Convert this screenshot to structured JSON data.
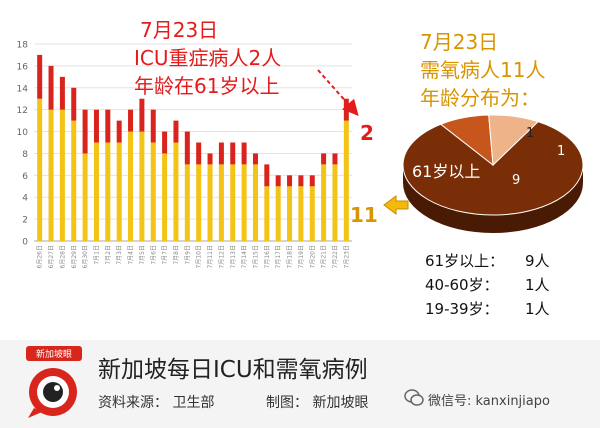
{
  "chart_data": [
    {
      "type": "bar",
      "stacked": true,
      "categories": [
        "6月26日",
        "6月27日",
        "6月28日",
        "6月29日",
        "6月30日",
        "7月1日",
        "7月2日",
        "7月3日",
        "7月4日",
        "7月5日",
        "7月6日",
        "7月7日",
        "7月8日",
        "7月9日",
        "7月10日",
        "7月11日",
        "7月12日",
        "7月13日",
        "7月14日",
        "7月15日",
        "7月16日",
        "7月17日",
        "7月18日",
        "7月19日",
        "7月20日",
        "7月21日",
        "7月22日",
        "7月23日"
      ],
      "series": [
        {
          "values": [
            13,
            12,
            12,
            11,
            8,
            9,
            9,
            9,
            10,
            10,
            9,
            8,
            9,
            7,
            7,
            7,
            7,
            7,
            7,
            7,
            5,
            5,
            5,
            5,
            5,
            7,
            7,
            11
          ],
          "color": "#f3c315"
        },
        {
          "values": [
            4,
            4,
            3,
            3,
            4,
            3,
            3,
            2,
            2,
            3,
            3,
            2,
            2,
            3,
            2,
            1,
            2,
            2,
            2,
            1,
            2,
            1,
            1,
            1,
            1,
            1,
            1,
            2
          ],
          "color": "#d9231d"
        }
      ],
      "ylim": [
        0,
        18
      ],
      "yticks": [
        0,
        2,
        4,
        6,
        8,
        10,
        12,
        14,
        16,
        18
      ],
      "grid": true
    },
    {
      "type": "pie",
      "slices": [
        {
          "label": "61岁以上",
          "value": 9,
          "color": "#7a2e08"
        },
        {
          "label": "40-60岁",
          "value": 1,
          "color": "#c7561c"
        },
        {
          "label": "19-39岁",
          "value": 1,
          "color": "#efb38a"
        }
      ]
    }
  ],
  "annotations": {
    "icu_line1": "7月23日",
    "icu_line2": "ICU重症病人2人",
    "icu_line3": "年龄在61岁以上",
    "icu_count": "2",
    "oxygen_line1": "7月23日",
    "oxygen_line2": "需氧病人11人",
    "oxygen_line3": "年龄分布为：",
    "oxygen_count": "11",
    "pie_label_big": "61岁以上",
    "pie_value_big": "9",
    "pie_value_a": "1",
    "pie_value_b": "1"
  },
  "legend": [
    {
      "label": "61岁以上：",
      "value": "9人"
    },
    {
      "label": "40-60岁：",
      "value": "1人"
    },
    {
      "label": "19-39岁：",
      "value": "1人"
    }
  ],
  "footer": {
    "logo_text": "新加坡眼",
    "title": "新加坡每日ICU和需氧病例",
    "source": "资料来源：  卫生部",
    "maker": "制图：  新加坡眼",
    "wechat": "微信号: kanxinjiapo"
  },
  "colors": {
    "oxygen": "#f3c315",
    "icu": "#d9231d",
    "annotation_red": "#e31b1b",
    "annotation_gold": "#d89500",
    "arrow_gold": "#f6b80a"
  }
}
